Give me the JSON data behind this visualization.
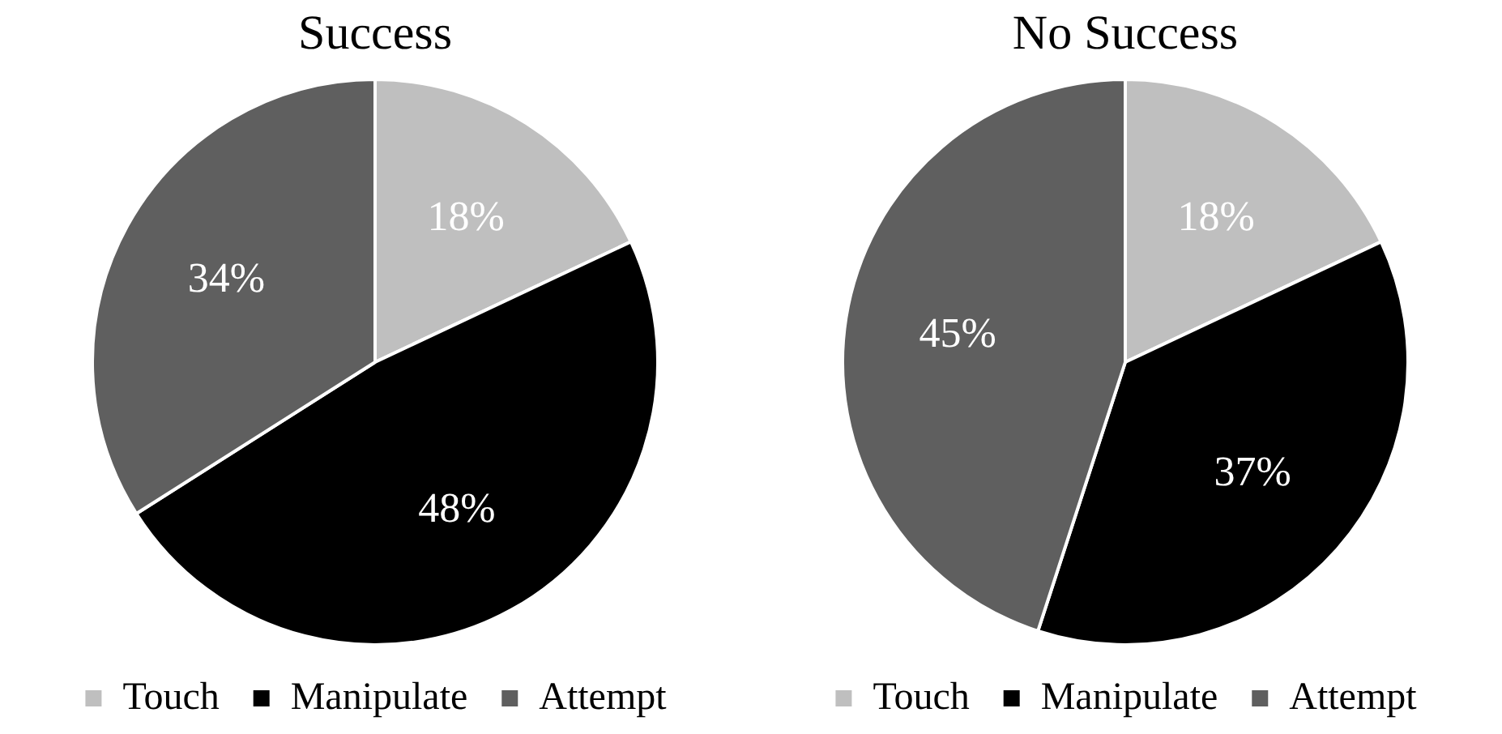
{
  "chart_data": [
    {
      "type": "pie",
      "title": "Success",
      "categories": [
        "Touch",
        "Manipulate",
        "Attempt"
      ],
      "values": [
        18,
        48,
        34
      ],
      "colors": [
        "#bfbfbf",
        "#000000",
        "#5f5f5f"
      ],
      "value_labels": [
        "18%",
        "48%",
        "34%"
      ],
      "legend": "bottom"
    },
    {
      "type": "pie",
      "title": "No Success",
      "categories": [
        "Touch",
        "Manipulate",
        "Attempt"
      ],
      "values": [
        18,
        37,
        45
      ],
      "colors": [
        "#bfbfbf",
        "#000000",
        "#5f5f5f"
      ],
      "value_labels": [
        "18%",
        "37%",
        "45%"
      ],
      "legend": "bottom"
    }
  ]
}
